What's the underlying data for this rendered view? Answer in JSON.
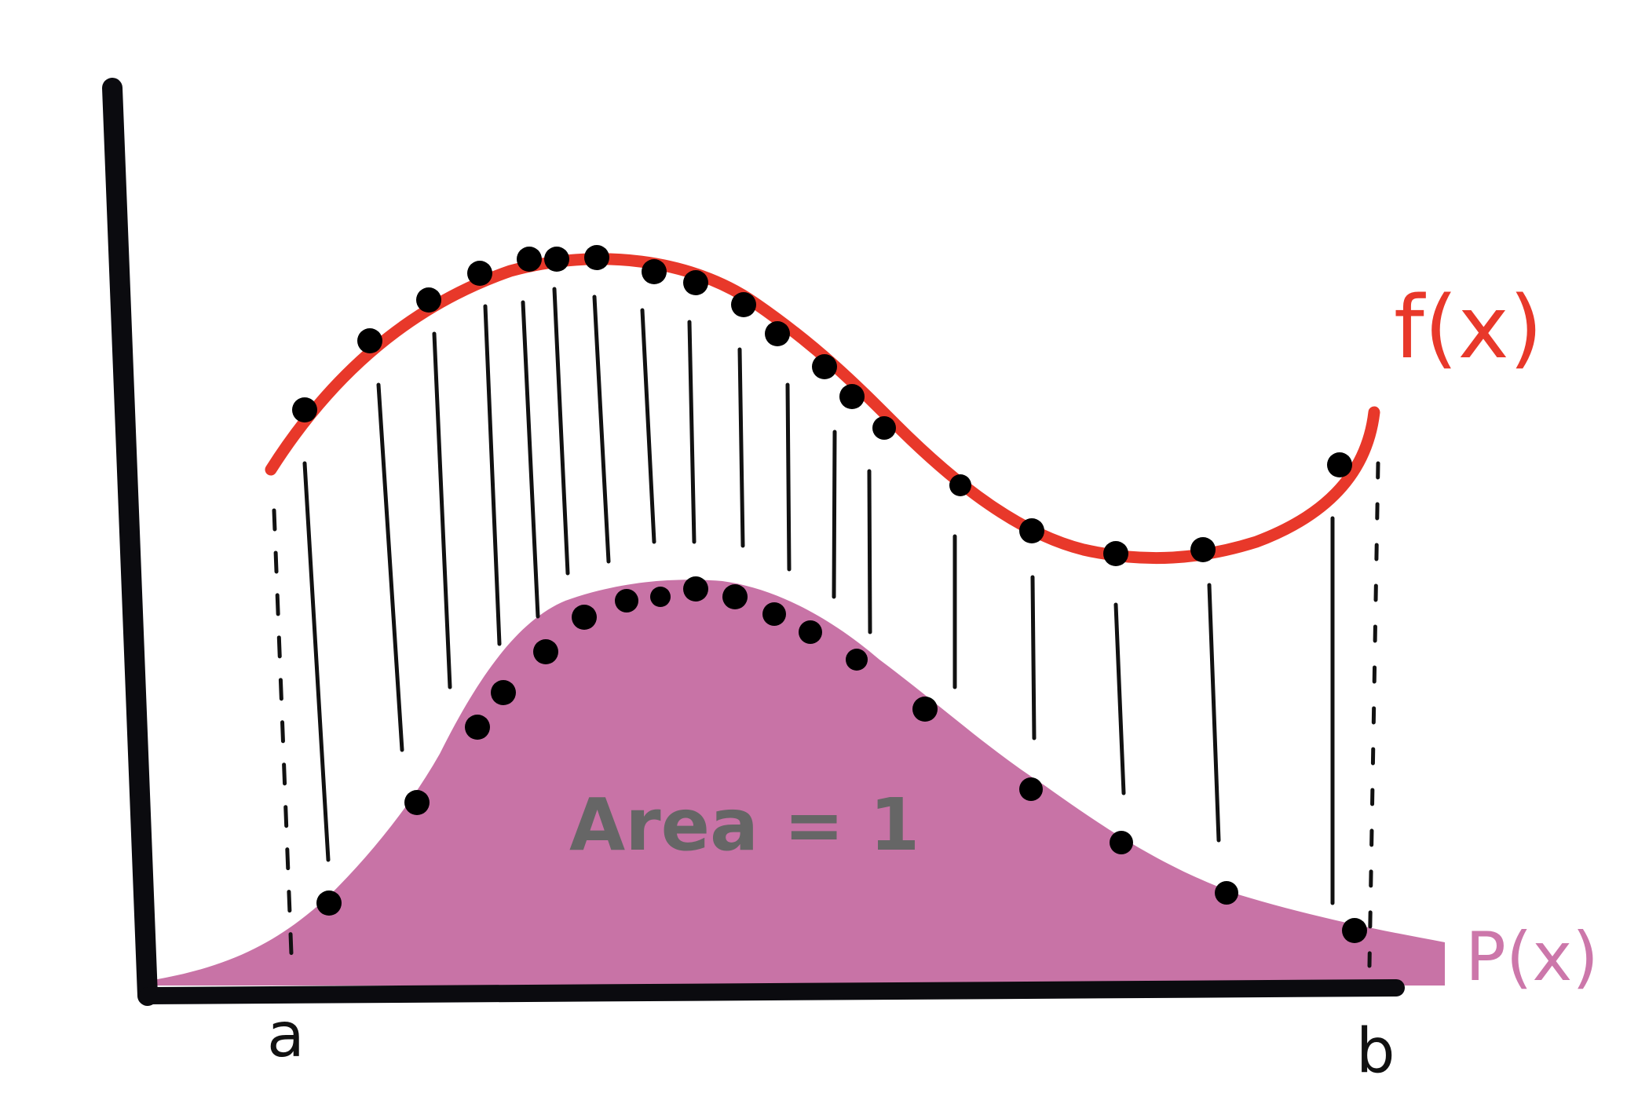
{
  "labels": {
    "f": "f(x)",
    "p": "P(x)",
    "a": "a",
    "b": "b",
    "area": "Area = 1"
  },
  "colors": {
    "f_curve": "#e8382a",
    "p_fill": "#c873a6",
    "p_label": "#cc77aa",
    "axes": "#0b0b0f",
    "dots": "#000000",
    "area_text": "#666666"
  }
}
